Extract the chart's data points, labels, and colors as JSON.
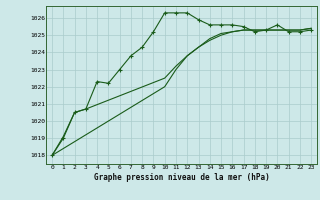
{
  "title": "Graphe pression niveau de la mer (hPa)",
  "background_color": "#cde8e8",
  "grid_color": "#aacccc",
  "line_color": "#1a5c1a",
  "ylim": [
    1017.5,
    1026.7
  ],
  "xlim": [
    -0.5,
    23.5
  ],
  "yticks": [
    1018,
    1019,
    1020,
    1021,
    1022,
    1023,
    1024,
    1025,
    1026
  ],
  "xticks": [
    0,
    1,
    2,
    3,
    4,
    5,
    6,
    7,
    8,
    9,
    10,
    11,
    12,
    13,
    14,
    15,
    16,
    17,
    18,
    19,
    20,
    21,
    22,
    23
  ],
  "series1_x": [
    0,
    1,
    2,
    3,
    4,
    5,
    6,
    7,
    8,
    9,
    10,
    11,
    12,
    13,
    14,
    15,
    16,
    17,
    18,
    19,
    20,
    21,
    22,
    23
  ],
  "series1_y": [
    1018.0,
    1019.0,
    1020.5,
    1020.7,
    1022.3,
    1022.2,
    1023.0,
    1023.8,
    1024.3,
    1025.2,
    1026.3,
    1026.3,
    1026.3,
    1025.9,
    1025.6,
    1025.6,
    1025.6,
    1025.5,
    1025.2,
    1025.3,
    1025.6,
    1025.2,
    1025.2,
    1025.3
  ],
  "series2_x": [
    0,
    1,
    2,
    3,
    10,
    11,
    12,
    13,
    14,
    15,
    16,
    17,
    18,
    19,
    20,
    21,
    22,
    23
  ],
  "series2_y": [
    1018.0,
    1019.1,
    1020.5,
    1020.7,
    1022.5,
    1023.2,
    1023.8,
    1024.3,
    1024.8,
    1025.1,
    1025.2,
    1025.3,
    1025.3,
    1025.3,
    1025.3,
    1025.3,
    1025.3,
    1025.4
  ],
  "series3_x": [
    0,
    10,
    11,
    12,
    13,
    14,
    15,
    16,
    17,
    18,
    19,
    20,
    21,
    22,
    23
  ],
  "series3_y": [
    1018.0,
    1022.0,
    1023.0,
    1023.8,
    1024.3,
    1024.7,
    1025.0,
    1025.2,
    1025.3,
    1025.3,
    1025.3,
    1025.3,
    1025.3,
    1025.3,
    1025.4
  ]
}
